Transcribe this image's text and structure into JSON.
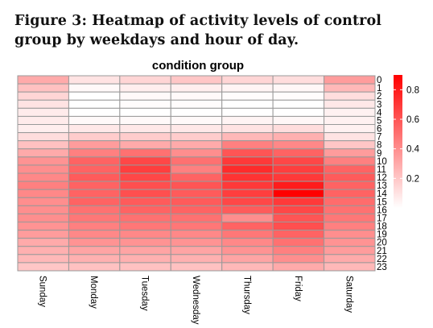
{
  "caption": "Figure 3: Heatmap of activity levels of control group by weekdays and hour of day.",
  "chart_data": {
    "type": "heatmap",
    "title": "condition group",
    "xlabel": "",
    "ylabel": "",
    "columns": [
      "Sunday",
      "Monday",
      "Tuesday",
      "Wednesday",
      "Thursday",
      "Friday",
      "Saturday"
    ],
    "rows": [
      "0",
      "1",
      "2",
      "3",
      "4",
      "5",
      "6",
      "7",
      "8",
      "9",
      "10",
      "11",
      "12",
      "13",
      "14",
      "15",
      "16",
      "17",
      "18",
      "19",
      "20",
      "21",
      "22",
      "23"
    ],
    "values": [
      [
        0.3,
        0.1,
        0.15,
        0.2,
        0.15,
        0.12,
        0.35
      ],
      [
        0.22,
        0.02,
        0.06,
        0.06,
        0.04,
        0.03,
        0.25
      ],
      [
        0.15,
        0.0,
        0.02,
        0.02,
        0.01,
        0.01,
        0.12
      ],
      [
        0.1,
        0.0,
        0.01,
        0.01,
        0.0,
        0.0,
        0.08
      ],
      [
        0.07,
        0.0,
        0.0,
        0.0,
        0.0,
        0.0,
        0.05
      ],
      [
        0.07,
        0.02,
        0.02,
        0.02,
        0.04,
        0.03,
        0.05
      ],
      [
        0.06,
        0.08,
        0.08,
        0.08,
        0.1,
        0.12,
        0.05
      ],
      [
        0.12,
        0.18,
        0.18,
        0.18,
        0.25,
        0.28,
        0.1
      ],
      [
        0.22,
        0.35,
        0.3,
        0.3,
        0.45,
        0.42,
        0.2
      ],
      [
        0.3,
        0.45,
        0.5,
        0.4,
        0.6,
        0.55,
        0.35
      ],
      [
        0.38,
        0.55,
        0.65,
        0.5,
        0.7,
        0.65,
        0.45
      ],
      [
        0.4,
        0.55,
        0.68,
        0.45,
        0.75,
        0.68,
        0.55
      ],
      [
        0.42,
        0.58,
        0.65,
        0.55,
        0.72,
        0.7,
        0.58
      ],
      [
        0.45,
        0.55,
        0.62,
        0.6,
        0.7,
        0.8,
        0.55
      ],
      [
        0.42,
        0.55,
        0.62,
        0.58,
        0.68,
        0.9,
        0.55
      ],
      [
        0.4,
        0.55,
        0.58,
        0.58,
        0.65,
        0.7,
        0.52
      ],
      [
        0.4,
        0.5,
        0.55,
        0.55,
        0.58,
        0.65,
        0.5
      ],
      [
        0.4,
        0.48,
        0.5,
        0.5,
        0.4,
        0.6,
        0.48
      ],
      [
        0.38,
        0.45,
        0.48,
        0.48,
        0.55,
        0.62,
        0.45
      ],
      [
        0.35,
        0.42,
        0.42,
        0.42,
        0.48,
        0.55,
        0.4
      ],
      [
        0.3,
        0.38,
        0.38,
        0.38,
        0.42,
        0.5,
        0.38
      ],
      [
        0.28,
        0.32,
        0.32,
        0.32,
        0.38,
        0.45,
        0.35
      ],
      [
        0.25,
        0.28,
        0.28,
        0.28,
        0.32,
        0.4,
        0.3
      ],
      [
        0.2,
        0.22,
        0.22,
        0.22,
        0.25,
        0.3,
        0.25
      ]
    ],
    "legend": {
      "min": 0,
      "max": 0.9,
      "ticks": [
        0.2,
        0.4,
        0.6,
        0.8
      ],
      "tick_labels": [
        "0.2",
        "0.4",
        "0.6",
        "0.8"
      ],
      "placement": "right"
    },
    "colors": {
      "low": "#ffffff",
      "high": "#ff0000",
      "grid": "#999999"
    }
  }
}
